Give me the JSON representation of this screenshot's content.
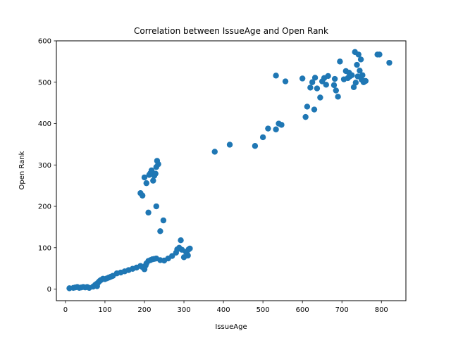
{
  "chart_data": {
    "type": "scatter",
    "title": "Correlation between IssueAge and Open Rank",
    "xlabel": "IssueAge",
    "ylabel": "Open Rank",
    "xlim": [
      -23,
      862
    ],
    "ylim": [
      -28,
      600
    ],
    "xticks": [
      0,
      100,
      200,
      300,
      400,
      500,
      600,
      700,
      800
    ],
    "yticks": [
      0,
      100,
      200,
      300,
      400,
      500,
      600
    ],
    "grid": false,
    "legend": "none",
    "marker_color": "#1f77b4",
    "points": [
      [
        10,
        2
      ],
      [
        20,
        3
      ],
      [
        25,
        4
      ],
      [
        30,
        5
      ],
      [
        35,
        3
      ],
      [
        40,
        4
      ],
      [
        45,
        5
      ],
      [
        50,
        4
      ],
      [
        55,
        5
      ],
      [
        60,
        3
      ],
      [
        70,
        6
      ],
      [
        75,
        10
      ],
      [
        78,
        12
      ],
      [
        80,
        7
      ],
      [
        82,
        15
      ],
      [
        85,
        18
      ],
      [
        87,
        20
      ],
      [
        90,
        22
      ],
      [
        95,
        25
      ],
      [
        100,
        24
      ],
      [
        105,
        26
      ],
      [
        110,
        28
      ],
      [
        115,
        30
      ],
      [
        120,
        32
      ],
      [
        130,
        38
      ],
      [
        140,
        40
      ],
      [
        150,
        43
      ],
      [
        160,
        46
      ],
      [
        170,
        49
      ],
      [
        180,
        52
      ],
      [
        190,
        56
      ],
      [
        195,
        53
      ],
      [
        200,
        48
      ],
      [
        203,
        57
      ],
      [
        205,
        62
      ],
      [
        210,
        68
      ],
      [
        215,
        70
      ],
      [
        220,
        72
      ],
      [
        225,
        73
      ],
      [
        230,
        74
      ],
      [
        240,
        70
      ],
      [
        250,
        69
      ],
      [
        260,
        74
      ],
      [
        270,
        80
      ],
      [
        280,
        88
      ],
      [
        283,
        96
      ],
      [
        288,
        100
      ],
      [
        292,
        118
      ],
      [
        295,
        95
      ],
      [
        300,
        77
      ],
      [
        305,
        90
      ],
      [
        308,
        85
      ],
      [
        310,
        81
      ],
      [
        312,
        96
      ],
      [
        315,
        98
      ],
      [
        190,
        232
      ],
      [
        195,
        226
      ],
      [
        200,
        270
      ],
      [
        205,
        256
      ],
      [
        210,
        185
      ],
      [
        212,
        276
      ],
      [
        215,
        280
      ],
      [
        218,
        287
      ],
      [
        220,
        281
      ],
      [
        222,
        262
      ],
      [
        225,
        274
      ],
      [
        228,
        279
      ],
      [
        230,
        295
      ],
      [
        232,
        310
      ],
      [
        235,
        302
      ],
      [
        230,
        200
      ],
      [
        240,
        140
      ],
      [
        248,
        166
      ],
      [
        378,
        332
      ],
      [
        416,
        349
      ],
      [
        480,
        346
      ],
      [
        500,
        367
      ],
      [
        513,
        388
      ],
      [
        533,
        386
      ],
      [
        540,
        400
      ],
      [
        547,
        397
      ],
      [
        533,
        516
      ],
      [
        557,
        502
      ],
      [
        600,
        509
      ],
      [
        608,
        416
      ],
      [
        612,
        441
      ],
      [
        620,
        487
      ],
      [
        625,
        500
      ],
      [
        630,
        434
      ],
      [
        632,
        511
      ],
      [
        637,
        485
      ],
      [
        645,
        463
      ],
      [
        650,
        502
      ],
      [
        655,
        510
      ],
      [
        660,
        494
      ],
      [
        665,
        515
      ],
      [
        680,
        493
      ],
      [
        682,
        508
      ],
      [
        685,
        480
      ],
      [
        690,
        465
      ],
      [
        695,
        550
      ],
      [
        705,
        507
      ],
      [
        710,
        527
      ],
      [
        715,
        510
      ],
      [
        718,
        523
      ],
      [
        720,
        514
      ],
      [
        725,
        517
      ],
      [
        730,
        488
      ],
      [
        733,
        573
      ],
      [
        735,
        499
      ],
      [
        738,
        542
      ],
      [
        740,
        514
      ],
      [
        742,
        567
      ],
      [
        745,
        528
      ],
      [
        748,
        555
      ],
      [
        750,
        506
      ],
      [
        752,
        517
      ],
      [
        755,
        500
      ],
      [
        760,
        503
      ],
      [
        790,
        567
      ],
      [
        795,
        567
      ],
      [
        820,
        547
      ]
    ]
  }
}
